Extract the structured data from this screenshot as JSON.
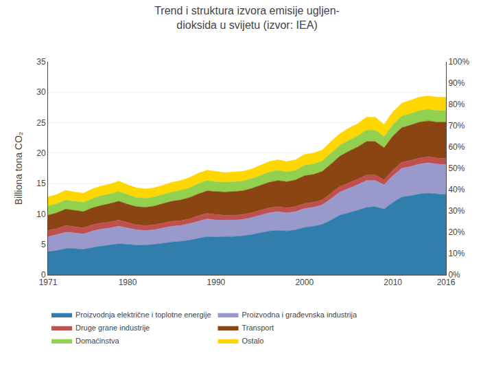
{
  "chart_data": {
    "type": "area",
    "stacked": true,
    "title": "Trend i struktura izvora emisije ugljen-\ndioksida u svijetu (izvor: IEA)",
    "ylabel": "Billiona tona CO₂",
    "x": [
      1971,
      1972,
      1973,
      1974,
      1975,
      1976,
      1977,
      1978,
      1979,
      1980,
      1981,
      1982,
      1983,
      1984,
      1985,
      1986,
      1987,
      1988,
      1989,
      1990,
      1991,
      1992,
      1993,
      1994,
      1995,
      1996,
      1997,
      1998,
      1999,
      2000,
      2001,
      2002,
      2003,
      2004,
      2005,
      2006,
      2007,
      2008,
      2009,
      2010,
      2011,
      2012,
      2013,
      2014,
      2015,
      2016
    ],
    "series": [
      {
        "name": "Proizvodnja električne i toplotne energije",
        "color": "#317EAC",
        "values": [
          3.8,
          4.0,
          4.3,
          4.3,
          4.2,
          4.5,
          4.7,
          4.9,
          5.1,
          5.0,
          4.9,
          4.9,
          5.0,
          5.2,
          5.4,
          5.5,
          5.7,
          6.0,
          6.3,
          6.2,
          6.3,
          6.3,
          6.4,
          6.6,
          6.9,
          7.2,
          7.3,
          7.2,
          7.4,
          7.8,
          8.0,
          8.3,
          9.0,
          9.8,
          10.2,
          10.6,
          11.1,
          11.2,
          10.8,
          11.9,
          12.8,
          13.0,
          13.3,
          13.4,
          13.3,
          13.2
        ]
      },
      {
        "name": "Proizvodna i građevnska industrija",
        "color": "#9999CC",
        "values": [
          2.5,
          2.6,
          2.7,
          2.6,
          2.5,
          2.7,
          2.8,
          2.8,
          2.9,
          2.7,
          2.5,
          2.4,
          2.4,
          2.5,
          2.6,
          2.6,
          2.7,
          2.8,
          2.9,
          2.8,
          2.7,
          2.7,
          2.7,
          2.8,
          2.9,
          3.0,
          3.1,
          3.0,
          3.0,
          3.1,
          3.1,
          3.2,
          3.5,
          3.8,
          4.0,
          4.2,
          4.4,
          4.3,
          4.0,
          4.4,
          4.7,
          4.8,
          4.9,
          5.0,
          4.9,
          4.9
        ]
      },
      {
        "name": "Druge grane industrije",
        "color": "#C0504D",
        "values": [
          1.0,
          1.0,
          1.1,
          1.0,
          1.0,
          1.0,
          1.0,
          1.0,
          1.0,
          0.9,
          0.8,
          0.8,
          0.8,
          0.8,
          0.8,
          0.8,
          0.8,
          0.9,
          0.9,
          0.9,
          0.8,
          0.8,
          0.8,
          0.8,
          0.8,
          0.8,
          0.8,
          0.8,
          0.8,
          0.8,
          0.8,
          0.8,
          0.9,
          0.9,
          0.9,
          0.9,
          0.9,
          0.9,
          0.8,
          0.9,
          1.0,
          1.0,
          1.0,
          1.0,
          1.0,
          1.0
        ]
      },
      {
        "name": "Transport",
        "color": "#8B4513",
        "values": [
          2.5,
          2.6,
          2.7,
          2.7,
          2.7,
          2.8,
          2.9,
          3.0,
          3.1,
          3.0,
          3.0,
          3.0,
          3.1,
          3.2,
          3.3,
          3.4,
          3.5,
          3.6,
          3.7,
          3.8,
          3.8,
          3.9,
          3.9,
          4.0,
          4.1,
          4.2,
          4.3,
          4.3,
          4.4,
          4.6,
          4.6,
          4.7,
          4.8,
          5.0,
          5.2,
          5.3,
          5.5,
          5.5,
          5.3,
          5.6,
          5.7,
          5.8,
          5.9,
          5.9,
          5.9,
          6.0
        ]
      },
      {
        "name": "Domaćinstva",
        "color": "#92D050",
        "values": [
          1.5,
          1.5,
          1.5,
          1.5,
          1.5,
          1.5,
          1.6,
          1.6,
          1.6,
          1.6,
          1.5,
          1.5,
          1.5,
          1.5,
          1.5,
          1.6,
          1.6,
          1.7,
          1.7,
          1.6,
          1.6,
          1.6,
          1.6,
          1.6,
          1.6,
          1.7,
          1.7,
          1.6,
          1.6,
          1.7,
          1.7,
          1.7,
          1.8,
          1.8,
          1.8,
          1.8,
          1.9,
          1.9,
          1.8,
          1.9,
          1.9,
          1.9,
          1.9,
          1.9,
          1.9,
          1.9
        ]
      },
      {
        "name": "Ostalo",
        "color": "#FFD700",
        "values": [
          1.5,
          1.5,
          1.6,
          1.5,
          1.5,
          1.6,
          1.6,
          1.6,
          1.7,
          1.6,
          1.6,
          1.5,
          1.5,
          1.5,
          1.6,
          1.6,
          1.7,
          1.7,
          1.7,
          1.7,
          1.6,
          1.6,
          1.6,
          1.6,
          1.7,
          1.7,
          1.7,
          1.7,
          1.7,
          1.8,
          1.8,
          1.8,
          1.9,
          1.9,
          2.0,
          2.0,
          2.1,
          2.1,
          2.0,
          2.1,
          2.1,
          2.2,
          2.2,
          2.2,
          2.2,
          2.2
        ]
      }
    ],
    "xlim": [
      1971,
      2016
    ],
    "xticks": [
      1971,
      1980,
      1990,
      2000,
      2010,
      2016
    ],
    "ylim": [
      0,
      35
    ],
    "yticks": [
      0,
      5,
      10,
      15,
      20,
      25,
      30,
      35
    ],
    "y2lim": [
      0,
      100
    ],
    "y2ticks": [
      {
        "value": 0,
        "label": "0%"
      },
      {
        "value": 10,
        "label": "10%"
      },
      {
        "value": 20,
        "label": "20%"
      },
      {
        "value": 30,
        "label": "30%"
      },
      {
        "value": 40,
        "label": "40%"
      },
      {
        "value": 50,
        "label": "50%"
      },
      {
        "value": 60,
        "label": "60%"
      },
      {
        "value": 70,
        "label": "70%"
      },
      {
        "value": 80,
        "label": "80%"
      },
      {
        "value": 90,
        "label": "90%"
      },
      {
        "value": 100,
        "label": "100%"
      }
    ],
    "grid": true,
    "legend": "bottom"
  }
}
